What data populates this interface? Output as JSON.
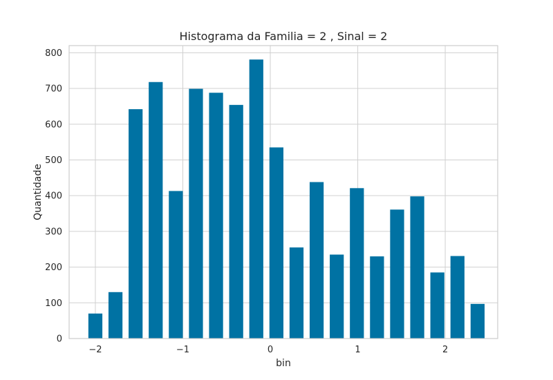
{
  "chart_data": {
    "type": "bar",
    "title": "Histograma da Familia = 2 , Sinal = 2",
    "xlabel": "bin",
    "ylabel": "Quantidade",
    "x": [
      -2.0,
      -1.77,
      -1.54,
      -1.31,
      -1.08,
      -0.85,
      -0.62,
      -0.39,
      -0.16,
      0.07,
      0.3,
      0.53,
      0.76,
      0.99,
      1.22,
      1.45,
      1.68,
      1.91,
      2.14,
      2.37
    ],
    "values": [
      70,
      130,
      642,
      718,
      413,
      699,
      688,
      654,
      781,
      535,
      255,
      438,
      235,
      421,
      230,
      361,
      398,
      185,
      231,
      97
    ],
    "bar_width": 0.16,
    "xlim": [
      -2.3,
      2.6
    ],
    "ylim": [
      0,
      820
    ],
    "xticks": [
      -2,
      -1,
      0,
      1,
      2
    ],
    "xtick_labels": [
      "−2",
      "−1",
      "0",
      "1",
      "2"
    ],
    "yticks": [
      0,
      100,
      200,
      300,
      400,
      500,
      600,
      700,
      800
    ],
    "ytick_labels": [
      "0",
      "100",
      "200",
      "300",
      "400",
      "500",
      "600",
      "700",
      "800"
    ],
    "grid": true,
    "colors": {
      "bar": "#0072a3",
      "grid": "#d0d0d0",
      "frame": "#cccccc"
    }
  }
}
